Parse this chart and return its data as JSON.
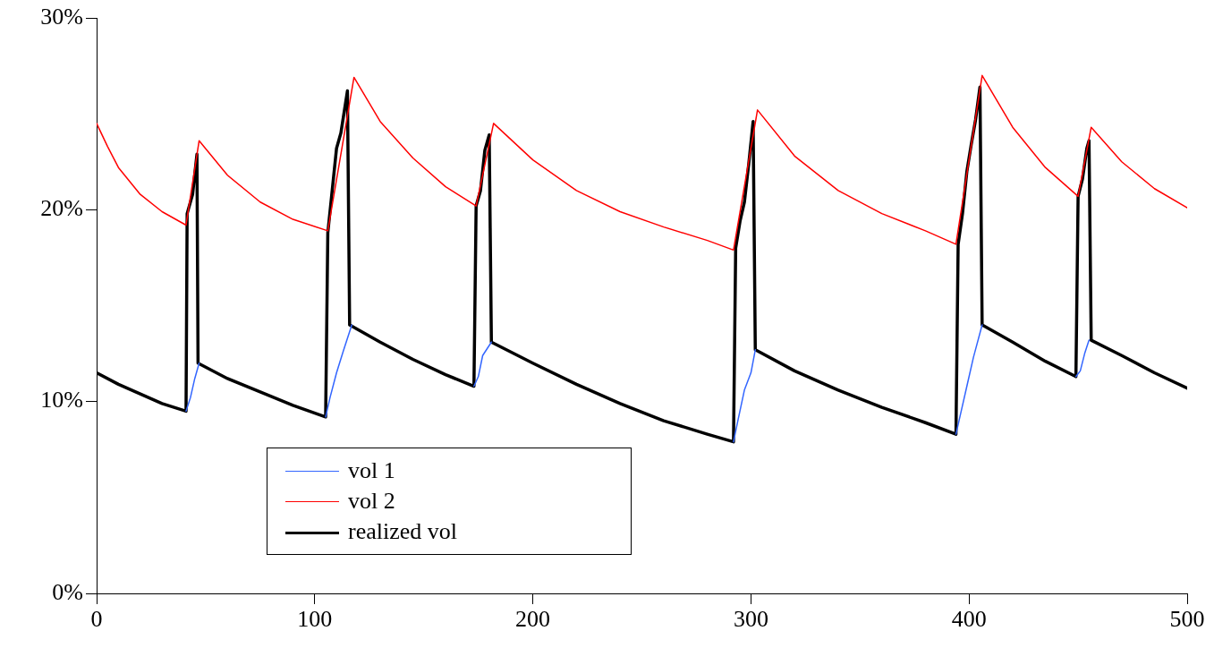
{
  "chart_data": {
    "type": "line",
    "xlim": [
      0,
      500
    ],
    "xticks": [
      0,
      100,
      200,
      300,
      400,
      500
    ],
    "ylim": [
      0,
      30
    ],
    "yticks": [
      {
        "value": 0,
        "label": "0%"
      },
      {
        "value": 10,
        "label": "10%"
      },
      {
        "value": 20,
        "label": "20%"
      },
      {
        "value": 30,
        "label": "30%"
      }
    ],
    "grid": false,
    "legend": "bottom left",
    "marker": "none",
    "line_style": "solid",
    "series": [
      {
        "name": "vol 1",
        "color": "#3366ff",
        "x": [
          41,
          43,
          45,
          47,
          76,
          105,
          107,
          110,
          113,
          117,
          145,
          173,
          175,
          177,
          181,
          236,
          292,
          294,
          297,
          300,
          302,
          348,
          394,
          396,
          399,
          402,
          406,
          428,
          449,
          451,
          453,
          455
        ],
        "values": [
          9.5,
          10.2,
          11.2,
          12.0,
          null,
          9.2,
          10.2,
          11.5,
          12.6,
          14.0,
          null,
          10.8,
          11.3,
          12.4,
          13.1,
          null,
          7.9,
          9.0,
          10.6,
          11.5,
          12.7,
          null,
          8.3,
          9.3,
          10.8,
          12.3,
          14.0,
          null,
          11.3,
          11.6,
          12.5,
          13.2
        ]
      },
      {
        "name": "vol 2",
        "color": "#ff0000",
        "x": [
          0,
          5,
          10,
          20,
          30,
          41,
          47,
          60,
          75,
          90,
          106,
          118,
          130,
          145,
          160,
          174,
          182,
          200,
          220,
          240,
          260,
          280,
          292,
          303,
          320,
          340,
          360,
          380,
          394,
          406,
          420,
          435,
          450,
          456,
          470,
          485,
          500
        ],
        "values": [
          24.5,
          23.3,
          22.2,
          20.8,
          19.9,
          19.2,
          23.6,
          21.8,
          20.4,
          19.5,
          18.9,
          26.9,
          24.6,
          22.7,
          21.2,
          20.2,
          24.5,
          22.6,
          21.0,
          19.9,
          19.1,
          18.4,
          17.9,
          25.2,
          22.8,
          21.0,
          19.8,
          18.9,
          18.2,
          27.0,
          24.3,
          22.2,
          20.7,
          24.3,
          22.5,
          21.1,
          20.1
        ]
      },
      {
        "name": "realized vol",
        "color": "#000000",
        "x": [
          0,
          10,
          20,
          30,
          41,
          41.5,
          44,
          46,
          46.5,
          60,
          75,
          90,
          105,
          106,
          108,
          110,
          112,
          115,
          116,
          130,
          145,
          160,
          173,
          174,
          176,
          178,
          180,
          181,
          200,
          220,
          240,
          260,
          280,
          292,
          293,
          295,
          297,
          299,
          301,
          302,
          320,
          340,
          360,
          380,
          394,
          395,
          397,
          399,
          401,
          403,
          405,
          406,
          420,
          435,
          449,
          450,
          452,
          454,
          455,
          456,
          470,
          485,
          500
        ],
        "values": [
          11.5,
          10.9,
          10.4,
          9.9,
          9.5,
          19.8,
          20.8,
          22.9,
          12.0,
          11.2,
          10.5,
          9.8,
          9.2,
          18.8,
          21.0,
          23.2,
          24.0,
          26.2,
          14.0,
          13.1,
          12.2,
          11.4,
          10.8,
          20.2,
          21.0,
          23.1,
          23.9,
          13.1,
          12.0,
          10.9,
          9.9,
          9.0,
          8.3,
          7.9,
          18.0,
          19.4,
          20.4,
          22.4,
          24.6,
          12.7,
          11.6,
          10.6,
          9.7,
          8.9,
          8.3,
          18.2,
          19.8,
          22.0,
          23.4,
          24.7,
          26.4,
          14.0,
          13.1,
          12.1,
          11.3,
          20.7,
          21.6,
          23.2,
          23.6,
          13.2,
          12.4,
          11.5,
          10.7
        ]
      }
    ]
  }
}
